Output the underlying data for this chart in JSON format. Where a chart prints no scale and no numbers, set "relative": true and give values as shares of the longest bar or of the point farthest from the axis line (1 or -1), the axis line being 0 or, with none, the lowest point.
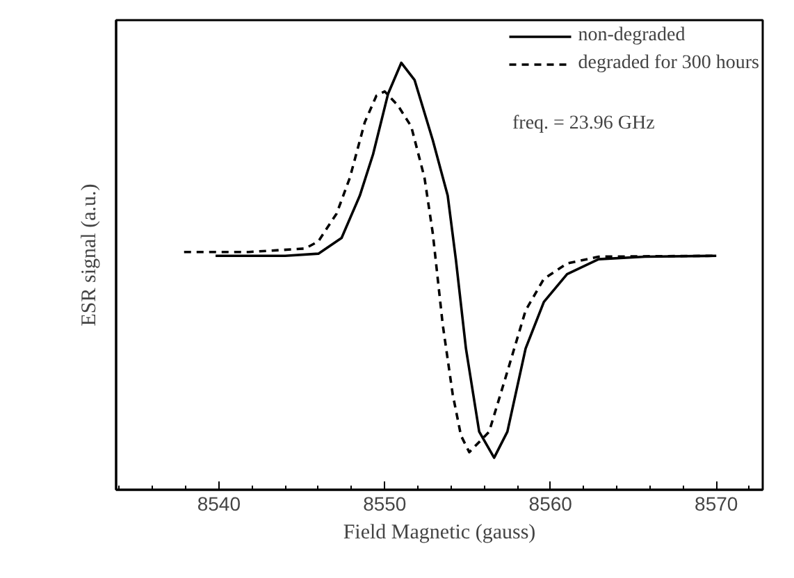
{
  "chart_data": {
    "type": "line",
    "relative": true,
    "xlabel": "Field Magnetic (gauss)",
    "ylabel": "ESR signal (a.u.)",
    "xlim": [
      8533.8,
      8572.8
    ],
    "xticks": [
      {
        "value": 8534,
        "label": null
      },
      {
        "value": 8536,
        "label": null
      },
      {
        "value": 8538,
        "label": null
      },
      8540,
      {
        "value": 8542,
        "label": null
      },
      {
        "value": 8544,
        "label": null
      },
      {
        "value": 8546,
        "label": null
      },
      {
        "value": 8548,
        "label": null
      },
      8550,
      {
        "value": 8552,
        "label": null
      },
      {
        "value": 8554,
        "label": null
      },
      {
        "value": 8556,
        "label": null
      },
      {
        "value": 8558,
        "label": null
      },
      8560,
      {
        "value": 8562,
        "label": null
      },
      {
        "value": 8564,
        "label": null
      },
      {
        "value": 8566,
        "label": null
      },
      {
        "value": 8568,
        "label": null
      },
      8570,
      {
        "value": 8572,
        "label": null
      }
    ],
    "grid": false,
    "legend": "top right",
    "annotations": [
      "freq. = 23.96 GHz"
    ],
    "series": [
      {
        "name": "non-degraded",
        "color": "#000000",
        "line_style": "solid",
        "x": [
          8539.8,
          8544,
          8546.0,
          8547.4,
          8548.5,
          8549.3,
          8550.2,
          8551.0,
          8551.8,
          8552.9,
          8553.8,
          8554.3,
          8554.9,
          8555.7,
          8556.6,
          8557.4,
          8558.5,
          8559.6,
          8561.0,
          8562.9,
          8565.7,
          8570
        ],
        "values": [
          0.548,
          0.548,
          0.553,
          0.59,
          0.689,
          0.786,
          0.927,
          1.0,
          0.96,
          0.819,
          0.689,
          0.537,
          0.331,
          0.136,
          0.075,
          0.136,
          0.331,
          0.44,
          0.505,
          0.54,
          0.546,
          0.548
        ]
      },
      {
        "name": "degraded for 300 hours",
        "color": "#000000",
        "line_style": "dashed",
        "x": [
          8537.9,
          8541.8,
          8545.2,
          8546.0,
          8547.1,
          8547.9,
          8548.8,
          8549.5,
          8550.0,
          8550.8,
          8551.6,
          8552.4,
          8552.9,
          8553.5,
          8554.1,
          8554.6,
          8555.1,
          8556.3,
          8557.4,
          8558.5,
          8559.6,
          8561.0,
          8562.9,
          8570
        ],
        "values": [
          0.557,
          0.557,
          0.565,
          0.582,
          0.647,
          0.731,
          0.861,
          0.923,
          0.933,
          0.9,
          0.851,
          0.731,
          0.601,
          0.387,
          0.224,
          0.127,
          0.088,
          0.136,
          0.277,
          0.42,
          0.494,
          0.53,
          0.546,
          0.548
        ]
      }
    ]
  }
}
